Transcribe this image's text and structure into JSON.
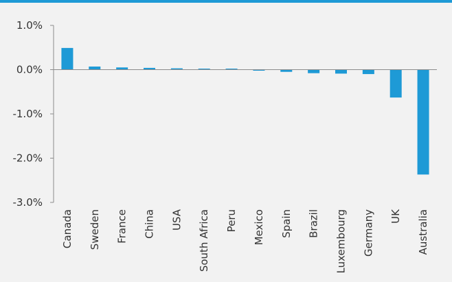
{
  "chart_data": {
    "type": "bar",
    "title": "",
    "xlabel": "",
    "ylabel": "",
    "categories": [
      "Canada",
      "Sweden",
      "France",
      "China",
      "USA",
      "South Africa",
      "Peru",
      "Mexico",
      "Spain",
      "Brazil",
      "Luxembourg",
      "Germany",
      "UK",
      "Australia"
    ],
    "values": [
      0.49,
      0.07,
      0.05,
      0.04,
      0.03,
      0.01,
      0.01,
      -0.02,
      -0.05,
      -0.08,
      -0.09,
      -0.1,
      -0.63,
      -2.37
    ],
    "ylim": [
      -3.0,
      1.0
    ],
    "yticks": [
      1.0,
      0.0,
      -1.0,
      -2.0,
      -3.0
    ],
    "ytick_labels": [
      "1.0%",
      "0.0%",
      "-1.0%",
      "-2.0%",
      "-3.0%"
    ],
    "grid": false,
    "legend": "none",
    "colors": {
      "bar": "#1e9ad6",
      "axis": "#8c8c8c",
      "accent_rule": "#1e9ad6",
      "background": "#f2f2f2"
    }
  }
}
